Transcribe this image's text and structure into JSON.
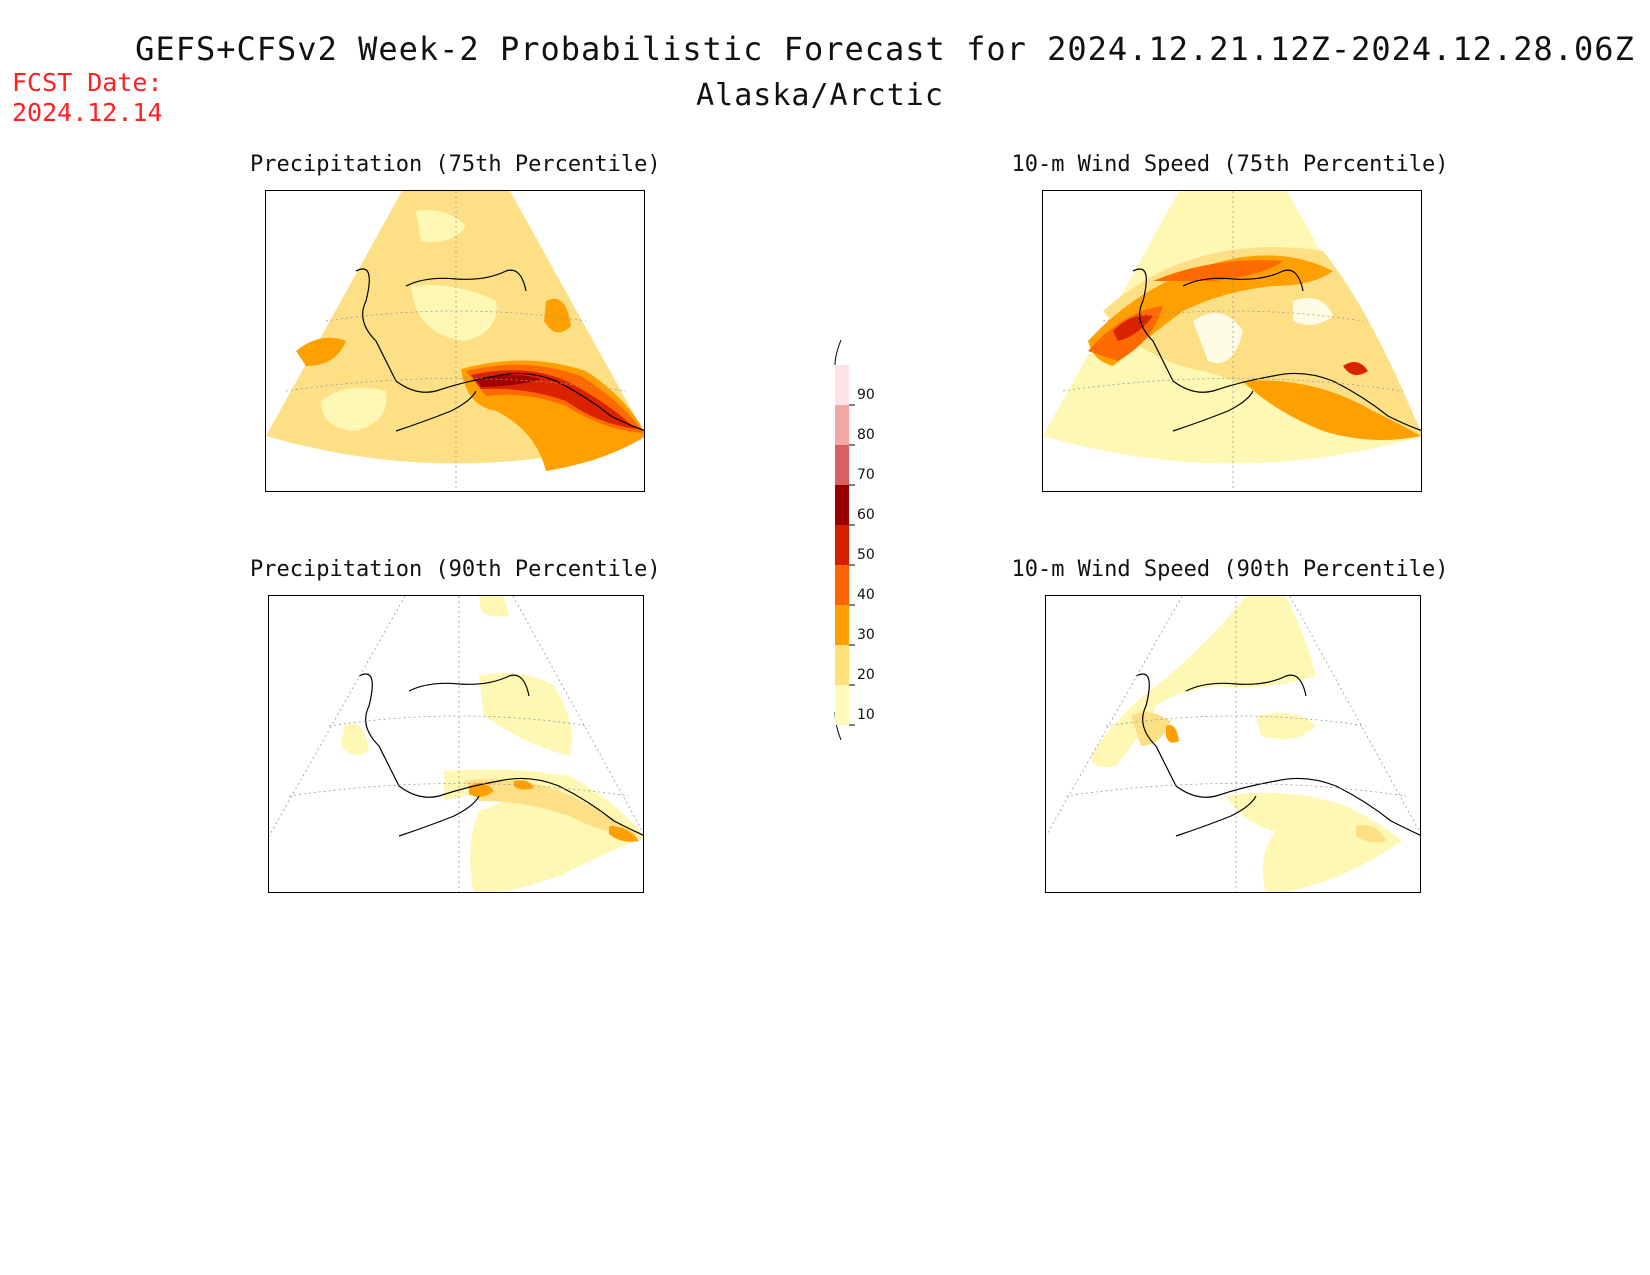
{
  "header": {
    "title": "GEFS+CFSv2 Week-2 Probabilistic Forecast for 2024.12.21.12Z-2024.12.28.06Z",
    "subtitle": "Alaska/Arctic",
    "fcst_label": "FCST Date:",
    "fcst_date": "2024.12.14"
  },
  "panels": [
    {
      "title": "Precipitation (75th Percentile)",
      "variable": "precipitation",
      "percentile": 75
    },
    {
      "title": "10-m Wind Speed (75th Percentile)",
      "variable": "wind_speed",
      "percentile": 75
    },
    {
      "title": "Precipitation (90th Percentile)",
      "variable": "precipitation",
      "percentile": 90
    },
    {
      "title": "10-m Wind Speed (90th Percentile)",
      "variable": "wind_speed",
      "percentile": 90
    }
  ],
  "colorbar": {
    "labels": [
      "90",
      "80",
      "70",
      "60",
      "50",
      "40",
      "30",
      "20",
      "10"
    ],
    "colors": [
      "#fde4e4",
      "#f2a6a6",
      "#d86060",
      "#9b0000",
      "#d42000",
      "#ff6600",
      "#ff9e00",
      "#ffe07a",
      "#fffab8"
    ]
  },
  "palette": {
    "p10": "#fff7b4",
    "p20": "#fde086",
    "p30": "#ffa000",
    "p40": "#ff6a00",
    "p50": "#d92300",
    "p60": "#a30000",
    "fcst_color": "#ff2020"
  }
}
